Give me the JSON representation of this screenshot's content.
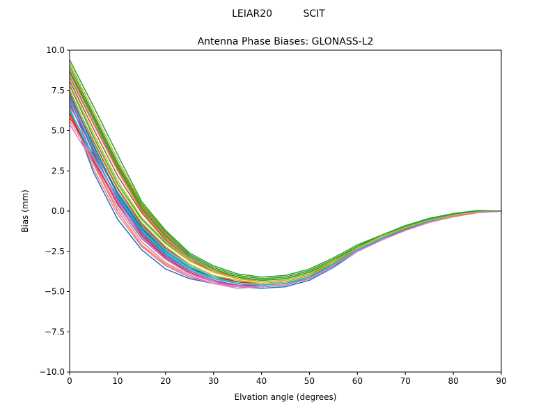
{
  "suptitle": "LEIAR20          SCIT",
  "chart_data": {
    "type": "line",
    "title": "Antenna Phase Biases: GLONASS-L2",
    "xlabel": "Elvation angle (degrees)",
    "ylabel": "Bias (mm)",
    "xlim": [
      0,
      90
    ],
    "ylim": [
      -10,
      10
    ],
    "xticks": [
      0,
      10,
      20,
      30,
      40,
      50,
      60,
      70,
      80,
      90
    ],
    "xtick_labels": [
      "0",
      "10",
      "20",
      "30",
      "40",
      "50",
      "60",
      "70",
      "80",
      "90"
    ],
    "yticks": [
      10,
      7.5,
      5,
      2.5,
      0,
      -2.5,
      -5,
      -7.5,
      -10
    ],
    "ytick_labels": [
      "10.0",
      "7.5",
      "5.0",
      "2.5",
      "0.0",
      "−2.5",
      "−5.0",
      "−7.5",
      "−10.0"
    ],
    "grid": false,
    "x": [
      0,
      5,
      10,
      15,
      20,
      25,
      30,
      35,
      40,
      45,
      50,
      55,
      60,
      65,
      70,
      75,
      80,
      85,
      90
    ],
    "series": [
      {
        "color": "#1f77b4",
        "values": [
          6.4,
          2.4,
          -0.5,
          -2.4,
          -3.6,
          -4.2,
          -4.5,
          -4.7,
          -4.8,
          -4.7,
          -4.3,
          -3.5,
          -2.5,
          -1.8,
          -1.2,
          -0.7,
          -0.35,
          -0.1,
          0.0
        ]
      },
      {
        "color": "#ff7f0e",
        "values": [
          6.0,
          2.9,
          0.0,
          -2.1,
          -3.3,
          -4.1,
          -4.5,
          -4.6,
          -4.6,
          -4.5,
          -4.1,
          -3.4,
          -2.5,
          -1.8,
          -1.2,
          -0.7,
          -0.35,
          -0.1,
          0.0
        ]
      },
      {
        "color": "#2ca02c",
        "values": [
          7.8,
          4.6,
          1.7,
          -0.5,
          -2.0,
          -3.1,
          -3.8,
          -4.2,
          -4.3,
          -4.2,
          -3.8,
          -3.1,
          -2.3,
          -1.6,
          -1.0,
          -0.55,
          -0.25,
          -0.05,
          0.0
        ]
      },
      {
        "color": "#d62728",
        "values": [
          5.8,
          3.5,
          0.8,
          -1.4,
          -2.8,
          -3.7,
          -4.3,
          -4.6,
          -4.7,
          -4.6,
          -4.2,
          -3.4,
          -2.5,
          -1.7,
          -1.1,
          -0.65,
          -0.3,
          -0.08,
          0.0
        ]
      },
      {
        "color": "#9467bd",
        "values": [
          7.2,
          4.0,
          1.0,
          -1.2,
          -2.6,
          -3.6,
          -4.2,
          -4.5,
          -4.6,
          -4.5,
          -4.1,
          -3.3,
          -2.4,
          -1.7,
          -1.1,
          -0.6,
          -0.3,
          -0.07,
          0.0
        ]
      },
      {
        "color": "#8c564b",
        "values": [
          6.6,
          3.8,
          1.1,
          -1.0,
          -2.5,
          -3.5,
          -4.1,
          -4.4,
          -4.5,
          -4.4,
          -4.0,
          -3.3,
          -2.4,
          -1.7,
          -1.1,
          -0.6,
          -0.3,
          -0.07,
          0.0
        ]
      },
      {
        "color": "#e377c2",
        "values": [
          5.4,
          3.0,
          0.2,
          -1.9,
          -3.2,
          -4.0,
          -4.5,
          -4.8,
          -4.7,
          -4.6,
          -4.2,
          -3.4,
          -2.5,
          -1.8,
          -1.2,
          -0.7,
          -0.33,
          -0.09,
          0.0
        ]
      },
      {
        "color": "#7f7f7f",
        "values": [
          8.4,
          5.5,
          2.6,
          0.2,
          -1.5,
          -2.8,
          -3.6,
          -4.1,
          -4.3,
          -4.2,
          -3.8,
          -3.1,
          -2.3,
          -1.6,
          -1.0,
          -0.55,
          -0.25,
          -0.05,
          0.0
        ]
      },
      {
        "color": "#bcbd22",
        "values": [
          9.2,
          6.2,
          3.2,
          0.5,
          -1.3,
          -2.7,
          -3.5,
          -4.0,
          -4.2,
          -4.1,
          -3.7,
          -3.0,
          -2.2,
          -1.6,
          -1.0,
          -0.55,
          -0.25,
          -0.05,
          0.0
        ]
      },
      {
        "color": "#17becf",
        "values": [
          6.2,
          3.2,
          0.6,
          -1.6,
          -2.9,
          -3.9,
          -4.4,
          -4.6,
          -4.7,
          -4.6,
          -4.1,
          -3.4,
          -2.5,
          -1.7,
          -1.1,
          -0.65,
          -0.3,
          -0.08,
          0.0
        ]
      },
      {
        "color": "#1f77b4",
        "values": [
          7.0,
          3.6,
          0.8,
          -1.3,
          -2.7,
          -3.7,
          -4.3,
          -4.6,
          -4.6,
          -4.5,
          -4.1,
          -3.3,
          -2.4,
          -1.7,
          -1.1,
          -0.62,
          -0.3,
          -0.07,
          0.0
        ]
      },
      {
        "color": "#ff7f0e",
        "values": [
          8.8,
          5.9,
          2.9,
          0.3,
          -1.4,
          -2.8,
          -3.6,
          -4.1,
          -4.3,
          -4.2,
          -3.8,
          -3.1,
          -2.3,
          -1.6,
          -1.0,
          -0.55,
          -0.25,
          -0.05,
          0.0
        ]
      },
      {
        "color": "#2ca02c",
        "values": [
          9.0,
          6.0,
          3.0,
          0.4,
          -1.3,
          -2.7,
          -3.5,
          -4.0,
          -4.2,
          -4.1,
          -3.7,
          -3.0,
          -2.2,
          -1.5,
          -0.95,
          -0.5,
          -0.2,
          -0.03,
          0.0
        ]
      },
      {
        "color": "#d62728",
        "values": [
          7.5,
          4.3,
          1.4,
          -0.8,
          -2.3,
          -3.3,
          -4.0,
          -4.4,
          -4.5,
          -4.4,
          -4.0,
          -3.2,
          -2.4,
          -1.7,
          -1.1,
          -0.6,
          -0.28,
          -0.06,
          0.0
        ]
      },
      {
        "color": "#9467bd",
        "values": [
          6.8,
          3.3,
          0.4,
          -1.7,
          -3.0,
          -3.9,
          -4.4,
          -4.6,
          -4.7,
          -4.6,
          -4.2,
          -3.4,
          -2.5,
          -1.8,
          -1.15,
          -0.65,
          -0.3,
          -0.08,
          0.0
        ]
      },
      {
        "color": "#8c564b",
        "values": [
          8.1,
          5.1,
          2.2,
          -0.1,
          -1.8,
          -3.0,
          -3.8,
          -4.2,
          -4.4,
          -4.3,
          -3.9,
          -3.2,
          -2.3,
          -1.6,
          -1.0,
          -0.57,
          -0.26,
          -0.05,
          0.0
        ]
      },
      {
        "color": "#e377c2",
        "values": [
          6.5,
          2.6,
          -0.2,
          -2.2,
          -3.4,
          -4.1,
          -4.5,
          -4.7,
          -4.7,
          -4.6,
          -4.2,
          -3.4,
          -2.5,
          -1.8,
          -1.2,
          -0.68,
          -0.32,
          -0.08,
          0.0
        ]
      },
      {
        "color": "#7f7f7f",
        "values": [
          8.6,
          5.7,
          2.7,
          0.1,
          -1.6,
          -2.9,
          -3.7,
          -4.1,
          -4.3,
          -4.2,
          -3.8,
          -3.1,
          -2.3,
          -1.6,
          -1.0,
          -0.55,
          -0.25,
          -0.05,
          0.0
        ]
      },
      {
        "color": "#bcbd22",
        "values": [
          7.4,
          4.4,
          1.5,
          -0.7,
          -2.2,
          -3.3,
          -4.0,
          -4.3,
          -4.5,
          -4.4,
          -4.0,
          -3.2,
          -2.4,
          -1.7,
          -1.05,
          -0.6,
          -0.27,
          -0.06,
          0.0
        ]
      },
      {
        "color": "#17becf",
        "values": [
          6.9,
          3.9,
          1.2,
          -0.9,
          -2.4,
          -3.4,
          -4.1,
          -4.5,
          -4.6,
          -4.5,
          -4.1,
          -3.3,
          -2.4,
          -1.7,
          -1.1,
          -0.6,
          -0.29,
          -0.07,
          0.0
        ]
      },
      {
        "color": "#1f77b4",
        "values": [
          7.3,
          4.1,
          1.1,
          -1.1,
          -2.5,
          -3.5,
          -4.2,
          -4.5,
          -4.6,
          -4.5,
          -4.1,
          -3.3,
          -2.4,
          -1.7,
          -1.1,
          -0.62,
          -0.3,
          -0.07,
          0.0
        ]
      },
      {
        "color": "#ff7f0e",
        "values": [
          8.3,
          5.4,
          2.5,
          0.0,
          -1.7,
          -3.0,
          -3.7,
          -4.2,
          -4.3,
          -4.2,
          -3.8,
          -3.1,
          -2.3,
          -1.6,
          -1.0,
          -0.56,
          -0.25,
          -0.05,
          0.0
        ]
      },
      {
        "color": "#2ca02c",
        "values": [
          8.7,
          5.8,
          2.8,
          0.2,
          -1.5,
          -2.8,
          -3.6,
          -4.1,
          -4.3,
          -4.2,
          -3.8,
          -3.1,
          -2.2,
          -1.5,
          -0.95,
          -0.5,
          -0.2,
          0.02,
          0.0
        ]
      },
      {
        "color": "#d62728",
        "values": [
          6.1,
          3.1,
          0.5,
          -1.5,
          -2.9,
          -3.8,
          -4.4,
          -4.6,
          -4.7,
          -4.6,
          -4.2,
          -3.4,
          -2.5,
          -1.8,
          -1.15,
          -0.66,
          -0.31,
          -0.08,
          0.0
        ]
      },
      {
        "color": "#9467bd",
        "values": [
          7.1,
          3.7,
          0.7,
          -1.4,
          -2.8,
          -3.7,
          -4.3,
          -4.6,
          -4.6,
          -4.5,
          -4.1,
          -3.3,
          -2.4,
          -1.7,
          -1.1,
          -0.62,
          -0.3,
          -0.07,
          0.0
        ]
      },
      {
        "color": "#17becf",
        "values": [
          6.3,
          3.4,
          0.9,
          -1.2,
          -2.6,
          -3.6,
          -4.2,
          -4.5,
          -4.6,
          -4.5,
          -4.1,
          -3.3,
          -2.4,
          -1.7,
          -1.1,
          -0.6,
          -0.29,
          -0.07,
          0.0
        ]
      },
      {
        "color": "#bcbd22",
        "values": [
          7.9,
          4.8,
          1.9,
          -0.4,
          -1.9,
          -3.1,
          -3.8,
          -4.2,
          -4.4,
          -4.3,
          -3.9,
          -3.1,
          -2.3,
          -1.6,
          -1.0,
          -0.56,
          -0.25,
          -0.05,
          0.0
        ]
      },
      {
        "color": "#e377c2",
        "values": [
          5.6,
          3.3,
          0.6,
          -1.6,
          -3.0,
          -3.9,
          -4.4,
          -4.7,
          -4.7,
          -4.6,
          -4.2,
          -3.4,
          -2.5,
          -1.8,
          -1.2,
          -0.68,
          -0.32,
          -0.08,
          0.0
        ]
      },
      {
        "color": "#2ca02c",
        "values": [
          9.4,
          6.5,
          3.5,
          0.6,
          -1.2,
          -2.6,
          -3.4,
          -3.9,
          -4.1,
          -4.0,
          -3.6,
          -2.9,
          -2.1,
          -1.5,
          -0.9,
          -0.45,
          -0.15,
          0.04,
          0.0
        ]
      }
    ]
  }
}
